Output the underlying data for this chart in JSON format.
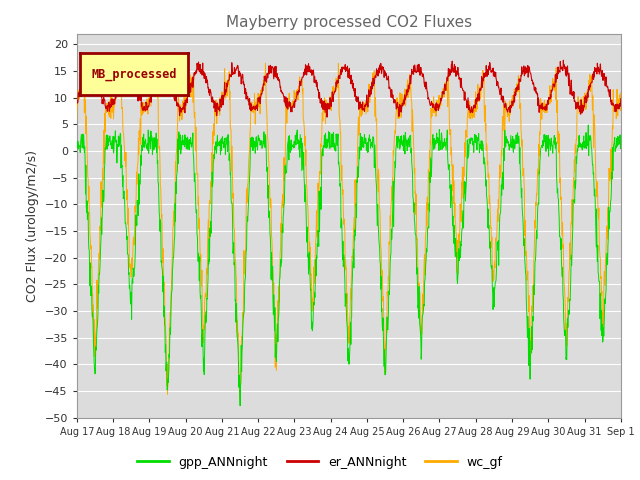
{
  "title": "Mayberry processed CO2 Fluxes",
  "ylabel": "CO2 Flux (urology/m2/s)",
  "ylim": [
    -50,
    22
  ],
  "yticks": [
    20,
    15,
    10,
    5,
    0,
    -5,
    -10,
    -15,
    -20,
    -25,
    -30,
    -35,
    -40,
    -45,
    -50
  ],
  "xticklabels": [
    "Aug 17",
    "Aug 18",
    "Aug 19",
    "Aug 20",
    "Aug 21",
    "Aug 22",
    "Aug 23",
    "Aug 24",
    "Aug 25",
    "Aug 26",
    "Aug 27",
    "Aug 28",
    "Aug 29",
    "Aug 30",
    "Aug 31",
    "Sep 1"
  ],
  "gpp_color": "#00dd00",
  "er_color": "#cc0000",
  "wc_color": "#ffaa00",
  "legend_label": "MB_processed",
  "legend_bg": "#ffff99",
  "legend_edge": "#990000",
  "n_days": 15,
  "background_color": "#dcdcdc",
  "grid_color": "#ffffff",
  "title_color": "#666666"
}
